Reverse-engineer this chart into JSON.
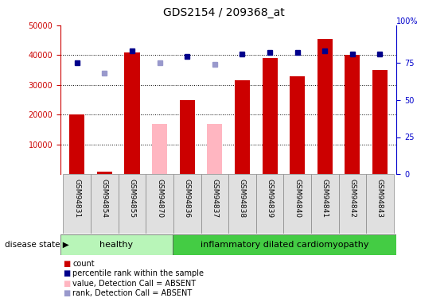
{
  "title": "GDS2154 / 209368_at",
  "samples": [
    "GSM94831",
    "GSM94854",
    "GSM94855",
    "GSM94870",
    "GSM94836",
    "GSM94837",
    "GSM94838",
    "GSM94839",
    "GSM94840",
    "GSM94841",
    "GSM94842",
    "GSM94843"
  ],
  "count_values": [
    20000,
    1000,
    41000,
    null,
    25000,
    null,
    31500,
    39000,
    33000,
    45500,
    40000,
    35000
  ],
  "absent_values": [
    null,
    null,
    null,
    17000,
    null,
    17000,
    null,
    null,
    null,
    null,
    null,
    null
  ],
  "percentile_rank": [
    75,
    null,
    83,
    null,
    79,
    null,
    81,
    82,
    82,
    83,
    81,
    81
  ],
  "absent_rank": [
    null,
    68,
    null,
    75,
    null,
    74,
    null,
    null,
    null,
    null,
    null,
    null
  ],
  "ylim_left": [
    0,
    50000
  ],
  "ylim_right": [
    0,
    100
  ],
  "yticks_left": [
    10000,
    20000,
    30000,
    40000,
    50000
  ],
  "yticks_right": [
    0,
    25,
    50,
    75
  ],
  "bar_color": "#cc0000",
  "absent_bar_color": "#ffb6c1",
  "dot_color": "#00008b",
  "absent_dot_color": "#9999cc",
  "left_axis_color": "#cc0000",
  "right_axis_color": "#0000cc",
  "healthy_color": "#b8f5b8",
  "inflam_color": "#44cc44",
  "legend_items": [
    {
      "label": "count",
      "color": "#cc0000"
    },
    {
      "label": "percentile rank within the sample",
      "color": "#00008b"
    },
    {
      "label": "value, Detection Call = ABSENT",
      "color": "#ffb6c1"
    },
    {
      "label": "rank, Detection Call = ABSENT",
      "color": "#9999cc"
    }
  ],
  "figsize": [
    5.63,
    3.75
  ],
  "dpi": 100
}
